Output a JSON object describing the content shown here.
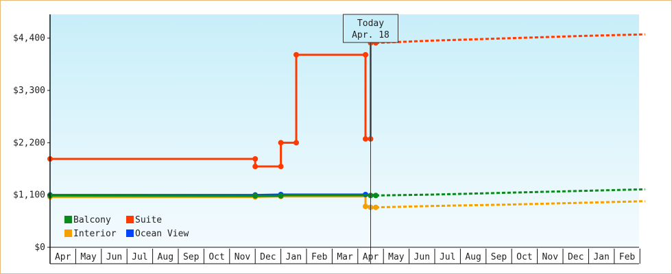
{
  "chart_data": {
    "type": "line",
    "title": "",
    "xlabel": "",
    "ylabel": "",
    "ylim": [
      0,
      4900
    ],
    "yticks": [
      {
        "value": 0,
        "label": "$0"
      },
      {
        "value": 1100,
        "label": "$1,100"
      },
      {
        "value": 2200,
        "label": "$2,200"
      },
      {
        "value": 3300,
        "label": "$3,300"
      },
      {
        "value": 4400,
        "label": "$4,400"
      }
    ],
    "x_months": [
      "Apr",
      "May",
      "Jun",
      "Jul",
      "Aug",
      "Sep",
      "Oct",
      "Nov",
      "Dec",
      "Jan",
      "Feb",
      "Mar",
      "Apr",
      "May",
      "Jun",
      "Jul",
      "Aug",
      "Sep",
      "Oct",
      "Nov",
      "Dec",
      "Jan",
      "Feb"
    ],
    "today": {
      "line1": "Today",
      "line2": "Apr. 18",
      "x": 12.5
    },
    "grid": false,
    "legend_position": "bottom-left",
    "series": [
      {
        "name": "Suite",
        "color": "#ff3a00",
        "points": [
          [
            0,
            1860
          ],
          [
            8,
            1860
          ],
          [
            8,
            1700
          ],
          [
            9,
            1700
          ],
          [
            9,
            2200
          ],
          [
            9.6,
            2200
          ],
          [
            9.6,
            4050
          ],
          [
            12.3,
            4050
          ],
          [
            12.3,
            2280
          ],
          [
            12.5,
            2280
          ],
          [
            12.5,
            4300
          ],
          [
            12.7,
            4300
          ]
        ],
        "markers": [
          [
            0,
            1860
          ],
          [
            8,
            1860
          ],
          [
            8,
            1700
          ],
          [
            9,
            1700
          ],
          [
            9,
            2200
          ],
          [
            9.6,
            2200
          ],
          [
            9.6,
            4050
          ],
          [
            12.3,
            4050
          ],
          [
            12.3,
            2280
          ],
          [
            12.5,
            2280
          ],
          [
            12.5,
            4300
          ],
          [
            12.7,
            4300
          ]
        ],
        "forecast": [
          [
            12.7,
            4300
          ],
          [
            15,
            4350
          ],
          [
            18,
            4400
          ],
          [
            21,
            4450
          ],
          [
            23.2,
            4480
          ]
        ]
      },
      {
        "name": "Ocean View",
        "color": "#0044ff",
        "points": [
          [
            0,
            1100
          ],
          [
            8,
            1100
          ],
          [
            9,
            1110
          ],
          [
            12.3,
            1110
          ],
          [
            12.5,
            1100
          ],
          [
            12.7,
            1100
          ]
        ],
        "markers": [
          [
            0,
            1100
          ],
          [
            8,
            1100
          ],
          [
            9,
            1110
          ],
          [
            12.3,
            1110
          ]
        ],
        "forecast": []
      },
      {
        "name": "Balcony",
        "color": "#0a8a1a",
        "points": [
          [
            0,
            1090
          ],
          [
            8,
            1080
          ],
          [
            9,
            1080
          ],
          [
            9,
            1095
          ],
          [
            12.3,
            1095
          ],
          [
            12.5,
            1090
          ],
          [
            12.7,
            1090
          ]
        ],
        "markers": [
          [
            0,
            1090
          ],
          [
            8,
            1080
          ],
          [
            9,
            1080
          ],
          [
            12.5,
            1090
          ],
          [
            12.7,
            1090
          ]
        ],
        "forecast": [
          [
            12.7,
            1090
          ],
          [
            15,
            1110
          ],
          [
            18,
            1150
          ],
          [
            21,
            1190
          ],
          [
            23.2,
            1220
          ]
        ]
      },
      {
        "name": "Interior",
        "color": "#f5a000",
        "points": [
          [
            0,
            1060
          ],
          [
            8,
            1060
          ],
          [
            9,
            1070
          ],
          [
            12.3,
            1070
          ],
          [
            12.3,
            860
          ],
          [
            12.5,
            860
          ],
          [
            12.5,
            840
          ],
          [
            12.7,
            840
          ]
        ],
        "markers": [
          [
            0,
            1060
          ],
          [
            8,
            1060
          ],
          [
            9,
            1070
          ],
          [
            12.3,
            860
          ],
          [
            12.5,
            840
          ],
          [
            12.7,
            840
          ]
        ],
        "forecast": [
          [
            12.7,
            840
          ],
          [
            15,
            870
          ],
          [
            18,
            900
          ],
          [
            21,
            940
          ],
          [
            23.2,
            970
          ]
        ]
      }
    ],
    "legend": [
      {
        "name": "Balcony",
        "color": "#0a8a1a"
      },
      {
        "name": "Suite",
        "color": "#ff3a00"
      },
      {
        "name": "Interior",
        "color": "#f5a000"
      },
      {
        "name": "Ocean View",
        "color": "#0044ff"
      }
    ],
    "colors": {
      "plot_top": "#c8eef9",
      "plot_bottom": "#f4fbfe",
      "frame_border": "#e8b878"
    }
  }
}
